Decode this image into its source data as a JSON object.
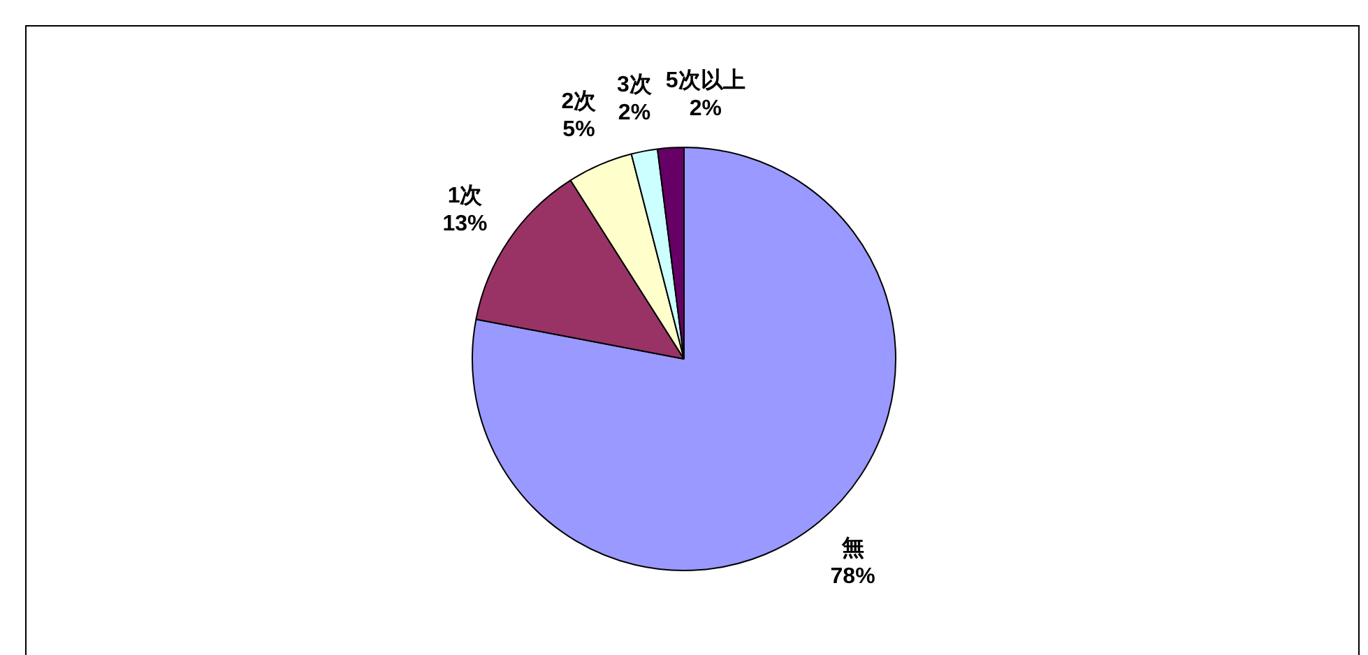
{
  "chart_data": {
    "type": "pie",
    "categories": [
      "無",
      "1次",
      "2次",
      "3次",
      "5次以上"
    ],
    "values": [
      78,
      13,
      5,
      2,
      2
    ],
    "value_labels": [
      "78%",
      "13%",
      "5%",
      "2%",
      "2%"
    ],
    "colors": [
      "#9999ff",
      "#993366",
      "#ffffcc",
      "#ccffff",
      "#660066"
    ],
    "legend": false
  }
}
